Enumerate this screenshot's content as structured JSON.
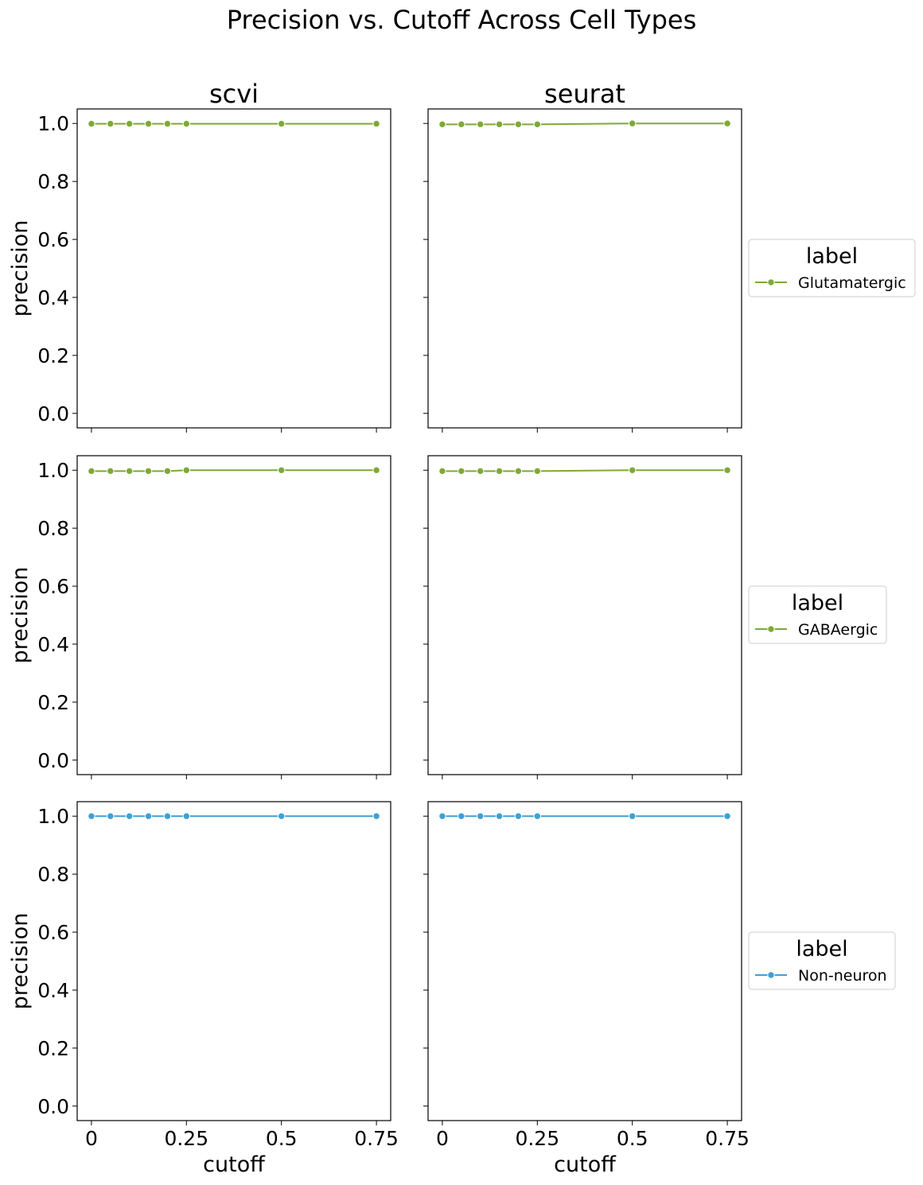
{
  "chart_data": {
    "type": "line",
    "title": "Precision vs. Cutoff Across Cell Types",
    "columns": [
      "scvi",
      "seurat"
    ],
    "xlabel": "cutoff",
    "ylabel": "precision",
    "x": [
      0,
      0.05,
      0.1,
      0.15,
      0.2,
      0.25,
      0.5,
      0.75
    ],
    "xticks": [
      0,
      0.25,
      0.5,
      0.75
    ],
    "xtick_labels": [
      "0",
      "0.25",
      "0.5",
      "0.75"
    ],
    "yticks": [
      0,
      0.2,
      0.4,
      0.6,
      0.8,
      1.0
    ],
    "ytick_labels": [
      "0.0",
      "0.2",
      "0.4",
      "0.6",
      "0.8",
      "1.0"
    ],
    "xlim": [
      -0.0375,
      0.7875
    ],
    "ylim": [
      -0.05,
      1.05
    ],
    "grid": false,
    "legend_placement": "right of each row",
    "rows": [
      {
        "legend_title": "label",
        "label": "Glutamatergic",
        "color": "#7ea936",
        "series": [
          {
            "column": "scvi",
            "values": [
              0.999,
              0.999,
              0.999,
              0.999,
              0.999,
              0.999,
              0.999,
              0.999
            ]
          },
          {
            "column": "seurat",
            "values": [
              0.997,
              0.997,
              0.997,
              0.997,
              0.997,
              0.997,
              1.0,
              1.0
            ]
          }
        ]
      },
      {
        "legend_title": "label",
        "label": "GABAergic",
        "color": "#7ea936",
        "series": [
          {
            "column": "scvi",
            "values": [
              0.997,
              0.997,
              0.997,
              0.997,
              0.997,
              1.0,
              1.0,
              1.0
            ]
          },
          {
            "column": "seurat",
            "values": [
              0.997,
              0.997,
              0.997,
              0.997,
              0.997,
              0.997,
              1.0,
              1.0
            ]
          }
        ]
      },
      {
        "legend_title": "label",
        "label": "Non-neuron",
        "color": "#3ea0d4",
        "series": [
          {
            "column": "scvi",
            "values": [
              1.0,
              1.0,
              1.0,
              1.0,
              1.0,
              1.0,
              1.0,
              1.0
            ]
          },
          {
            "column": "seurat",
            "values": [
              1.0,
              1.0,
              1.0,
              1.0,
              1.0,
              1.0,
              1.0,
              1.0
            ]
          }
        ]
      }
    ]
  }
}
